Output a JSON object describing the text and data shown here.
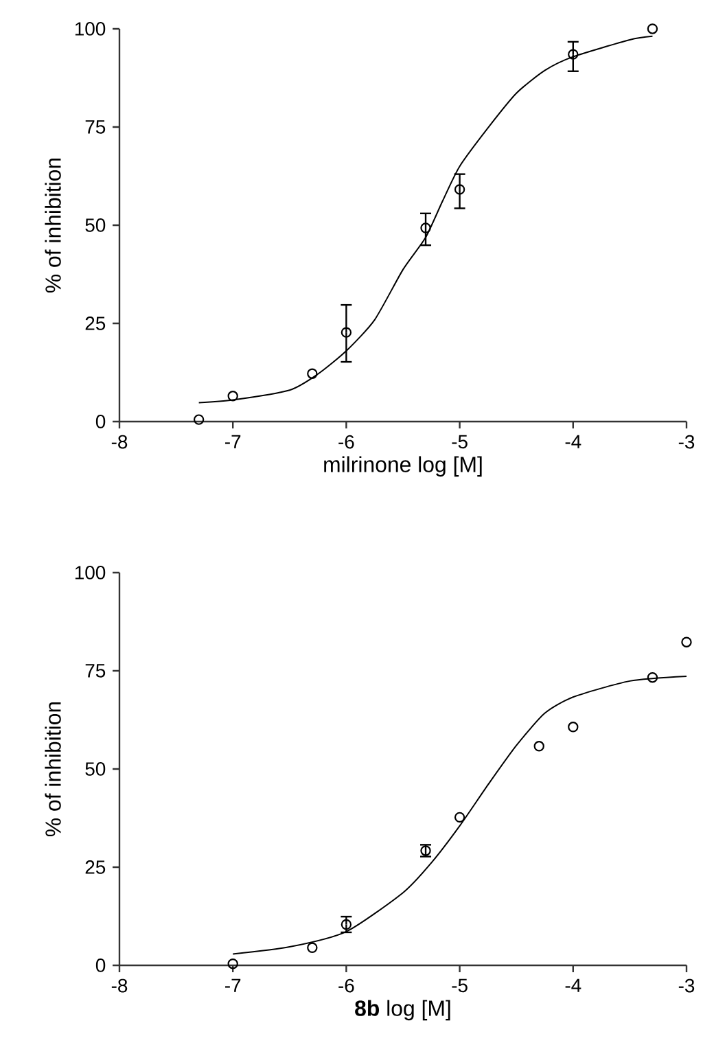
{
  "chart_data": [
    {
      "type": "scatter",
      "xlabel": "milrinone log [M]",
      "ylabel": "% of inhibition",
      "xlim": [
        -8,
        -3
      ],
      "xticks": [
        -8,
        -7,
        -6,
        -5,
        -4,
        -3
      ],
      "ylim": [
        0,
        100
      ],
      "yticks": [
        0,
        25,
        50,
        75,
        100
      ],
      "marker": "circle",
      "series": [
        {
          "color": "#000000",
          "x": [
            -7.3,
            -7,
            -6.3,
            -6,
            -5.3,
            -5,
            -4,
            -3.3
          ],
          "values": [
            0.5,
            6.5,
            12.2,
            22.7,
            49.3,
            59.1,
            93.5,
            100
          ],
          "errors": [
            null,
            null,
            null,
            [
              15.2,
              29.7
            ],
            [
              44.9,
              53
            ],
            [
              54.3,
              63
            ],
            [
              89.2,
              96.7
            ],
            null
          ]
        },
        {
          "type": "line",
          "color": "#000000",
          "marker": "none",
          "x": [
            -7.3,
            -7,
            -6.5,
            -6.25,
            -6,
            -5.75,
            -5.5,
            -5.3,
            -5.15,
            -5,
            -4.75,
            -4.5,
            -4.25,
            -4,
            -3.5,
            -3.3
          ],
          "values": [
            4.8,
            5.5,
            8,
            12.1,
            18,
            25.9,
            38.7,
            46.9,
            56.2,
            65,
            74.8,
            83.6,
            89.4,
            92.9,
            97.2,
            98.1
          ]
        }
      ]
    },
    {
      "type": "scatter",
      "xlabel": "**8b** log [M]",
      "ylabel": "% of inhibition",
      "xlim": [
        -8,
        -3
      ],
      "xticks": [
        -8,
        -7,
        -6,
        -5,
        -4,
        -3
      ],
      "ylim": [
        0,
        100
      ],
      "yticks": [
        0,
        25,
        50,
        75,
        100
      ],
      "marker": "circle",
      "series": [
        {
          "color": "#000000",
          "x": [
            -7,
            -6.3,
            -6,
            -5.3,
            -5,
            -4.3,
            -4,
            -3.3,
            -3
          ],
          "values": [
            0.4,
            4.5,
            10.4,
            29.2,
            37.7,
            55.8,
            60.7,
            73.3,
            82.3
          ],
          "errors": [
            null,
            null,
            2,
            1.5,
            null,
            null,
            null,
            null,
            null
          ]
        },
        {
          "type": "line",
          "color": "#000000",
          "marker": "none",
          "x": [
            -7,
            -6.5,
            -6,
            -5.5,
            -5.25,
            -5,
            -4.75,
            -4.5,
            -4.25,
            -4,
            -3.5,
            -3
          ],
          "values": [
            2.9,
            4.7,
            8.6,
            18.5,
            26.1,
            35.5,
            46,
            56,
            64.2,
            68.3,
            72.4,
            73.6
          ]
        }
      ]
    }
  ]
}
